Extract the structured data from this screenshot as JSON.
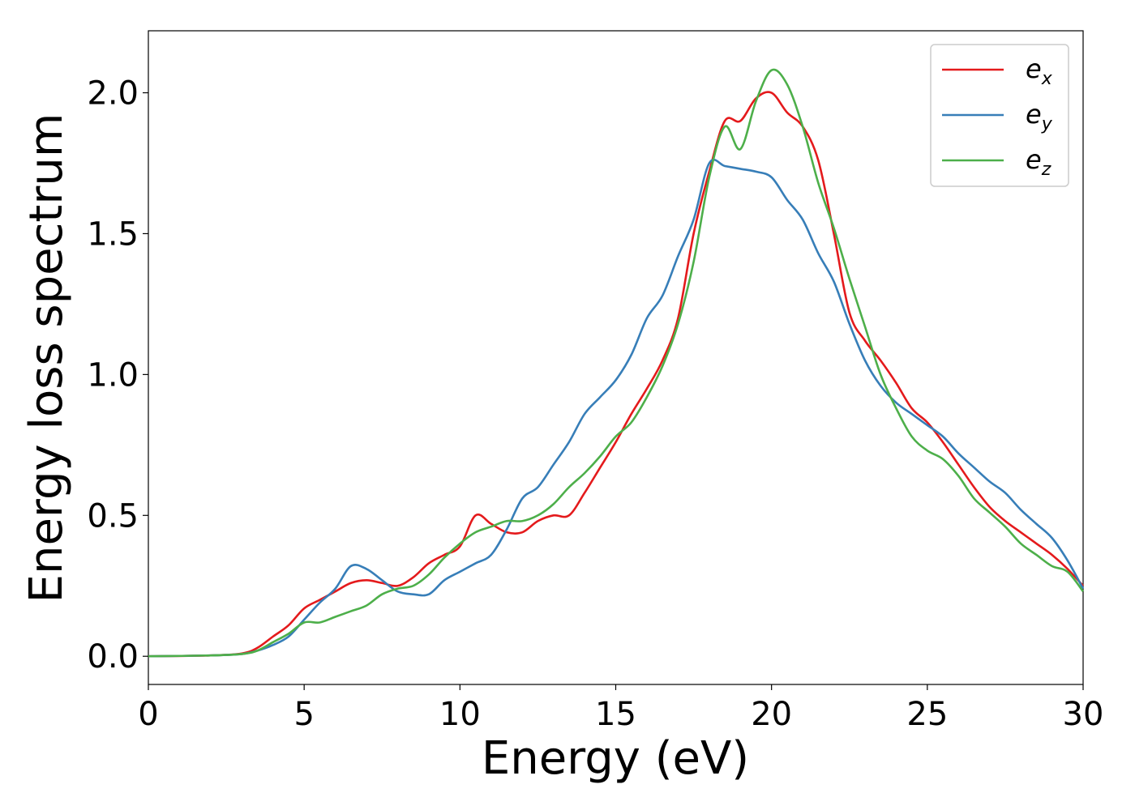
{
  "chart_data": {
    "type": "line",
    "xlabel": "Energy (eV)",
    "ylabel": "Energy loss spectrum",
    "xlim": [
      0,
      30
    ],
    "ylim": [
      -0.1,
      2.22
    ],
    "xticks": [
      "0",
      "5",
      "10",
      "15",
      "20",
      "25",
      "30"
    ],
    "yticks": [
      "0.0",
      "0.5",
      "1.0",
      "1.5",
      "2.0"
    ],
    "grid": false,
    "legend_position": "top-right",
    "series": [
      {
        "name": "e_x",
        "label_main": "e",
        "label_sub": "x",
        "color": "#e41a1c",
        "x": [
          0,
          2,
          3,
          3.5,
          4,
          4.5,
          5,
          5.5,
          6,
          6.5,
          7,
          7.5,
          8,
          8.5,
          9,
          9.5,
          10,
          10.5,
          11,
          11.5,
          12,
          12.5,
          13,
          13.5,
          14,
          14.5,
          15,
          15.5,
          16,
          16.5,
          17,
          17.5,
          18,
          18.5,
          19,
          19.5,
          20,
          20.5,
          21,
          21.5,
          22,
          22.5,
          23,
          23.5,
          24,
          24.5,
          25,
          25.5,
          26,
          26.5,
          27,
          27.5,
          28,
          28.5,
          29,
          29.5,
          30
        ],
        "y": [
          0.0,
          0.003,
          0.01,
          0.03,
          0.07,
          0.11,
          0.17,
          0.2,
          0.23,
          0.26,
          0.27,
          0.26,
          0.25,
          0.28,
          0.33,
          0.36,
          0.39,
          0.5,
          0.47,
          0.44,
          0.44,
          0.48,
          0.5,
          0.5,
          0.58,
          0.67,
          0.76,
          0.86,
          0.95,
          1.05,
          1.2,
          1.5,
          1.72,
          1.9,
          1.9,
          1.98,
          2.0,
          1.93,
          1.88,
          1.76,
          1.5,
          1.22,
          1.12,
          1.05,
          0.97,
          0.88,
          0.83,
          0.76,
          0.68,
          0.6,
          0.53,
          0.48,
          0.44,
          0.4,
          0.36,
          0.31,
          0.25
        ]
      },
      {
        "name": "e_y",
        "label_main": "e",
        "label_sub": "y",
        "color": "#377eb8",
        "x": [
          0,
          2,
          3,
          3.5,
          4,
          4.5,
          5,
          5.5,
          6,
          6.5,
          7,
          7.5,
          8,
          8.5,
          9,
          9.5,
          10,
          10.5,
          11,
          11.5,
          12,
          12.5,
          13,
          13.5,
          14,
          14.5,
          15,
          15.5,
          16,
          16.5,
          17,
          17.5,
          18,
          18.5,
          19,
          19.5,
          20,
          20.5,
          21,
          21.5,
          22,
          22.5,
          23,
          23.5,
          24,
          24.5,
          25,
          25.5,
          26,
          26.5,
          27,
          27.5,
          28,
          28.5,
          29,
          29.5,
          30
        ],
        "y": [
          0.0,
          0.003,
          0.008,
          0.02,
          0.04,
          0.07,
          0.13,
          0.19,
          0.24,
          0.32,
          0.31,
          0.27,
          0.23,
          0.22,
          0.22,
          0.27,
          0.3,
          0.33,
          0.36,
          0.45,
          0.56,
          0.6,
          0.68,
          0.76,
          0.86,
          0.92,
          0.98,
          1.07,
          1.2,
          1.28,
          1.42,
          1.55,
          1.75,
          1.74,
          1.73,
          1.72,
          1.7,
          1.62,
          1.55,
          1.43,
          1.33,
          1.18,
          1.05,
          0.96,
          0.9,
          0.86,
          0.82,
          0.78,
          0.72,
          0.67,
          0.62,
          0.58,
          0.52,
          0.47,
          0.42,
          0.34,
          0.24
        ]
      },
      {
        "name": "e_z",
        "label_main": "e",
        "label_sub": "z",
        "color": "#4daf4a",
        "x": [
          0,
          2,
          3,
          3.5,
          4,
          4.5,
          5,
          5.5,
          6,
          6.5,
          7,
          7.5,
          8,
          8.5,
          9,
          9.5,
          10,
          10.5,
          11,
          11.5,
          12,
          12.5,
          13,
          13.5,
          14,
          14.5,
          15,
          15.5,
          16,
          16.5,
          17,
          17.5,
          18,
          18.5,
          19,
          19.5,
          20,
          20.5,
          21,
          21.5,
          22,
          22.5,
          23,
          23.5,
          24,
          24.5,
          25,
          25.5,
          26,
          26.5,
          27,
          27.5,
          28,
          28.5,
          29,
          29.5,
          30
        ],
        "y": [
          0.0,
          0.003,
          0.008,
          0.02,
          0.05,
          0.08,
          0.12,
          0.12,
          0.14,
          0.16,
          0.18,
          0.22,
          0.24,
          0.25,
          0.29,
          0.35,
          0.4,
          0.44,
          0.46,
          0.48,
          0.48,
          0.5,
          0.54,
          0.6,
          0.65,
          0.71,
          0.78,
          0.83,
          0.92,
          1.03,
          1.18,
          1.4,
          1.7,
          1.88,
          1.8,
          1.97,
          2.08,
          2.03,
          1.88,
          1.68,
          1.52,
          1.34,
          1.17,
          1.0,
          0.88,
          0.78,
          0.73,
          0.7,
          0.64,
          0.56,
          0.51,
          0.46,
          0.4,
          0.36,
          0.32,
          0.3,
          0.23
        ]
      }
    ]
  }
}
